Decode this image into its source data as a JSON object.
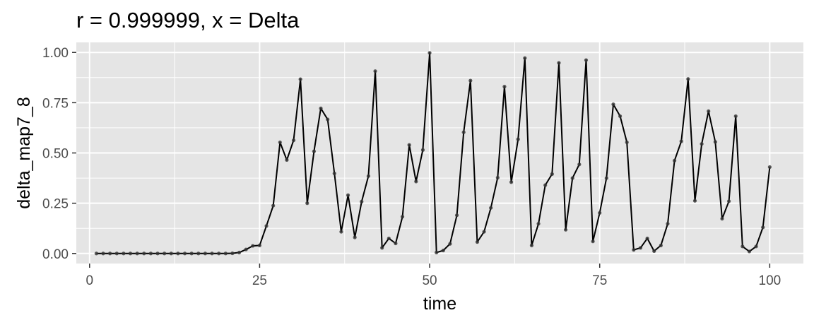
{
  "chart_data": {
    "type": "line",
    "title": "r = 0.999999, x = Delta",
    "xlabel": "time",
    "ylabel": "delta_map7_8",
    "xlim": [
      -1.95,
      104.95
    ],
    "ylim": [
      -0.05,
      1.05
    ],
    "x_ticks": [
      0,
      25,
      50,
      75,
      100
    ],
    "x_tick_labels": [
      "0",
      "25",
      "50",
      "75",
      "100"
    ],
    "y_ticks": [
      0,
      0.25,
      0.5,
      0.75,
      1.0
    ],
    "y_tick_labels": [
      "0.00",
      "0.25",
      "0.50",
      "0.75",
      "1.00"
    ],
    "grid": true,
    "colors": {
      "panel_background": "#e5e5e5",
      "grid": "#ffffff",
      "line": "#000000",
      "point": "#333333"
    },
    "series": [
      {
        "x": [
          1,
          2,
          3,
          4,
          5,
          6,
          7,
          8,
          9,
          10,
          11,
          12,
          13,
          14,
          15,
          16,
          17,
          18,
          19,
          20,
          21,
          22,
          23,
          24,
          25,
          26,
          27,
          28,
          29,
          30,
          31,
          32,
          33,
          34,
          35,
          36,
          37,
          38,
          39,
          40,
          41,
          42,
          43,
          44,
          45,
          46,
          47,
          48,
          49,
          50,
          51,
          52,
          53,
          54,
          55,
          56,
          57,
          58,
          59,
          60,
          61,
          62,
          63,
          64,
          65,
          66,
          67,
          68,
          69,
          70,
          71,
          72,
          73,
          74,
          75,
          76,
          77,
          78,
          79,
          80,
          81,
          82,
          83,
          84,
          85,
          86,
          87,
          88,
          89,
          90,
          91,
          92,
          93,
          94,
          95,
          96,
          97,
          98,
          99,
          100
        ],
        "y": [
          0,
          0,
          0,
          0,
          0,
          0,
          0,
          0,
          0,
          0,
          0,
          0,
          0,
          0,
          0,
          0,
          0,
          0,
          0,
          0,
          0.001,
          0.005,
          0.02,
          0.038,
          0.04,
          0.137,
          0.238,
          0.553,
          0.465,
          0.563,
          0.867,
          0.25,
          0.508,
          0.722,
          0.667,
          0.398,
          0.108,
          0.29,
          0.08,
          0.258,
          0.385,
          0.907,
          0.028,
          0.075,
          0.05,
          0.183,
          0.54,
          0.358,
          0.515,
          0.998,
          0.005,
          0.015,
          0.048,
          0.19,
          0.603,
          0.86,
          0.057,
          0.108,
          0.227,
          0.377,
          0.83,
          0.355,
          0.568,
          0.972,
          0.04,
          0.148,
          0.34,
          0.395,
          0.948,
          0.118,
          0.375,
          0.443,
          0.962,
          0.06,
          0.202,
          0.375,
          0.742,
          0.683,
          0.553,
          0.018,
          0.028,
          0.075,
          0.012,
          0.04,
          0.148,
          0.462,
          0.558,
          0.868,
          0.262,
          0.545,
          0.708,
          0.555,
          0.173,
          0.26,
          0.683,
          0.035,
          0.01,
          0.035,
          0.13,
          0.43
        ]
      }
    ]
  }
}
